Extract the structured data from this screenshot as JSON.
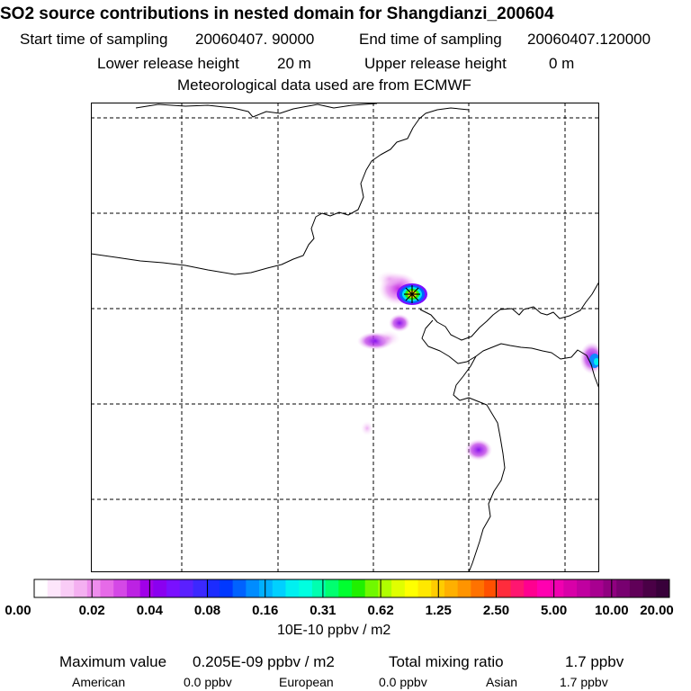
{
  "title": "SO2 source contributions in nested domain for Shangdianzi_200604",
  "sampling": {
    "start_label": "Start time of sampling",
    "start_value": "20060407. 90000",
    "end_label": "End time of sampling",
    "end_value": "20060407.120000"
  },
  "release": {
    "lower_label": "Lower release height",
    "lower_value": "20 m",
    "upper_label": "Upper release height",
    "upper_value": "0 m"
  },
  "meteo_note": "Meteorological data used are from ECMWF",
  "colorbar": {
    "tick_labels": [
      "0.00",
      "0.02",
      "0.04",
      "0.08",
      "0.16",
      "0.31",
      "0.62",
      "1.25",
      "2.50",
      "5.00",
      "10.00",
      "20.00"
    ],
    "unit": "10E-10 ppbv / m2",
    "colors": [
      "#ffffff",
      "#fde6fb",
      "#f9ccf6",
      "#f4b0f1",
      "#ee8ded",
      "#e66ae8",
      "#d448e6",
      "#bc22e3",
      "#a100e8",
      "#8a00f0",
      "#7a10ff",
      "#5a20ff",
      "#3c28ff",
      "#1c2cff",
      "#0038ff",
      "#0062ff",
      "#008cff",
      "#00b0ff",
      "#00d0ff",
      "#00f0f0",
      "#00ffe0",
      "#00ffb0",
      "#00ff70",
      "#00ff30",
      "#20f000",
      "#70f800",
      "#b0ff00",
      "#e0ff00",
      "#ffff00",
      "#ffe800",
      "#ffcc00",
      "#ffb000",
      "#ff9400",
      "#ff7200",
      "#ff5000",
      "#ff2c3c",
      "#ff1670",
      "#ff0090",
      "#ff00b0",
      "#f000b0",
      "#d800a8",
      "#c000a0",
      "#a80090",
      "#900080",
      "#780070",
      "#600058",
      "#4a0046",
      "#38003a"
    ]
  },
  "stats": {
    "max_label": "Maximum value",
    "max_value": "0.205E-09 ppbv / m2",
    "total_label": "Total mixing ratio",
    "total_value": "1.7 ppbv"
  },
  "sources": [
    {
      "region": "American",
      "value": "0.0 ppbv"
    },
    {
      "region": "European",
      "value": "0.0 ppbv"
    },
    {
      "region": "Asian",
      "value": "1.7 ppbv"
    }
  ],
  "map": {
    "border_color": "#000000",
    "receptor_marker": "receptor-cross-marker"
  }
}
